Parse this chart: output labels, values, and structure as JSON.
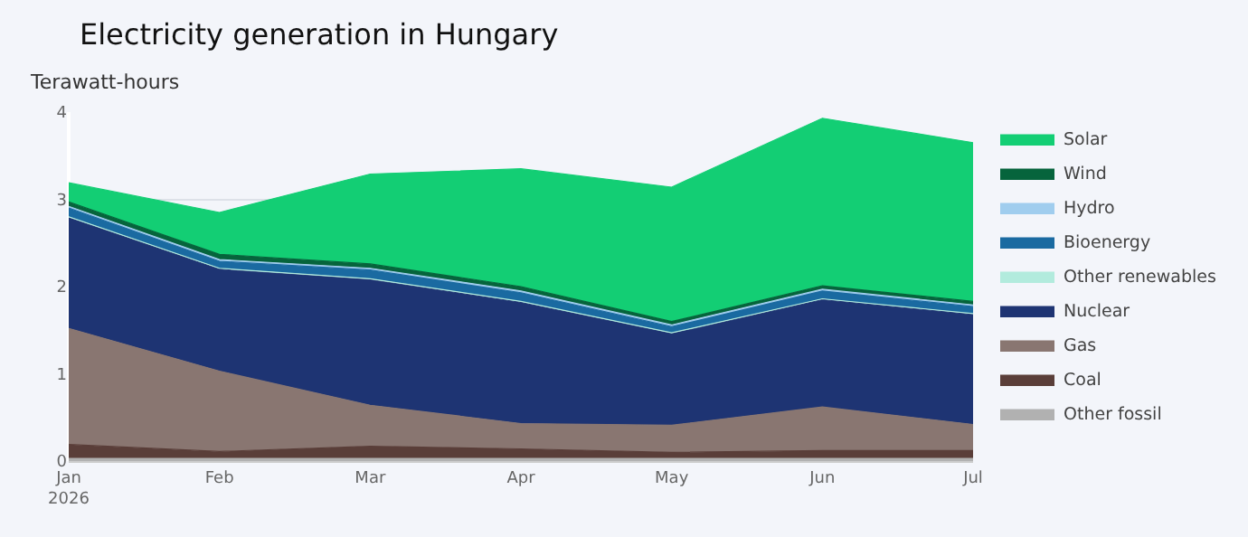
{
  "chart_data": {
    "type": "area",
    "title": "Electricity generation in Hungary",
    "subtitle": "Terawatt-hours",
    "categories": [
      "Jan\n2026",
      "Feb",
      "Mar",
      "Apr",
      "May",
      "Jun",
      "Jul"
    ],
    "stacked": true,
    "ylim": [
      0,
      4
    ],
    "yticks": [
      0,
      1,
      2,
      3,
      4
    ],
    "grid": "y",
    "legend": "right",
    "series": [
      {
        "name": "Other fossil",
        "color": "#b1b1b1",
        "values": [
          0.03,
          0.03,
          0.03,
          0.03,
          0.03,
          0.03,
          0.03
        ]
      },
      {
        "name": "Coal",
        "color": "#5a3e39",
        "values": [
          0.16,
          0.08,
          0.14,
          0.11,
          0.07,
          0.09,
          0.09
        ]
      },
      {
        "name": "Gas",
        "color": "#897671",
        "values": [
          1.33,
          0.92,
          0.47,
          0.29,
          0.31,
          0.5,
          0.3
        ]
      },
      {
        "name": "Nuclear",
        "color": "#1e3473",
        "values": [
          1.27,
          1.17,
          1.44,
          1.39,
          1.05,
          1.23,
          1.26
        ]
      },
      {
        "name": "Other renewables",
        "color": "#b2ebdd",
        "values": [
          0.01,
          0.01,
          0.01,
          0.01,
          0.01,
          0.01,
          0.01
        ]
      },
      {
        "name": "Bioenergy",
        "color": "#1a6aa1",
        "values": [
          0.1,
          0.08,
          0.1,
          0.1,
          0.07,
          0.09,
          0.08
        ]
      },
      {
        "name": "Hydro",
        "color": "#a0cdee",
        "values": [
          0.02,
          0.02,
          0.02,
          0.02,
          0.02,
          0.02,
          0.02
        ]
      },
      {
        "name": "Wind",
        "color": "#06643c",
        "values": [
          0.05,
          0.06,
          0.05,
          0.05,
          0.04,
          0.04,
          0.04
        ]
      },
      {
        "name": "Solar",
        "color": "#13ce74",
        "values": [
          0.22,
          0.48,
          1.03,
          1.35,
          1.54,
          1.92,
          1.82
        ]
      }
    ]
  }
}
